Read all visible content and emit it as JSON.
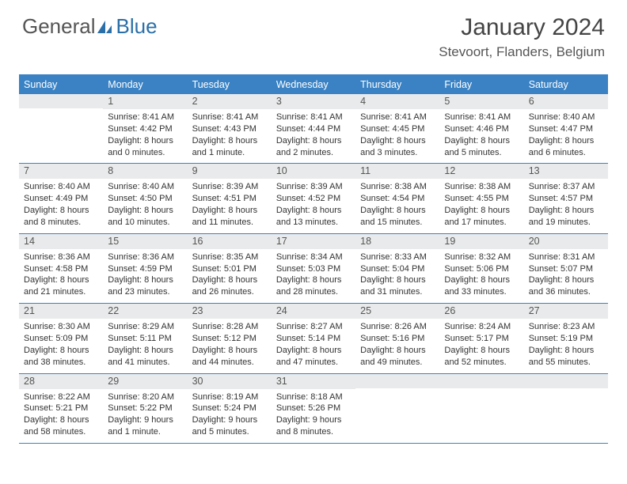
{
  "logo": {
    "part1": "General",
    "part2": "Blue"
  },
  "title": "January 2024",
  "location": "Stevoort, Flanders, Belgium",
  "header_bg": "#3a82c4",
  "daynum_bg": "#e9eaeb",
  "border_color": "#3a82c4",
  "text_color": "#333333",
  "weekdays": [
    "Sunday",
    "Monday",
    "Tuesday",
    "Wednesday",
    "Thursday",
    "Friday",
    "Saturday"
  ],
  "days": [
    {
      "n": 1,
      "sr": "8:41 AM",
      "ss": "4:42 PM",
      "dl": "8 hours and 0 minutes."
    },
    {
      "n": 2,
      "sr": "8:41 AM",
      "ss": "4:43 PM",
      "dl": "8 hours and 1 minute."
    },
    {
      "n": 3,
      "sr": "8:41 AM",
      "ss": "4:44 PM",
      "dl": "8 hours and 2 minutes."
    },
    {
      "n": 4,
      "sr": "8:41 AM",
      "ss": "4:45 PM",
      "dl": "8 hours and 3 minutes."
    },
    {
      "n": 5,
      "sr": "8:41 AM",
      "ss": "4:46 PM",
      "dl": "8 hours and 5 minutes."
    },
    {
      "n": 6,
      "sr": "8:40 AM",
      "ss": "4:47 PM",
      "dl": "8 hours and 6 minutes."
    },
    {
      "n": 7,
      "sr": "8:40 AM",
      "ss": "4:49 PM",
      "dl": "8 hours and 8 minutes."
    },
    {
      "n": 8,
      "sr": "8:40 AM",
      "ss": "4:50 PM",
      "dl": "8 hours and 10 minutes."
    },
    {
      "n": 9,
      "sr": "8:39 AM",
      "ss": "4:51 PM",
      "dl": "8 hours and 11 minutes."
    },
    {
      "n": 10,
      "sr": "8:39 AM",
      "ss": "4:52 PM",
      "dl": "8 hours and 13 minutes."
    },
    {
      "n": 11,
      "sr": "8:38 AM",
      "ss": "4:54 PM",
      "dl": "8 hours and 15 minutes."
    },
    {
      "n": 12,
      "sr": "8:38 AM",
      "ss": "4:55 PM",
      "dl": "8 hours and 17 minutes."
    },
    {
      "n": 13,
      "sr": "8:37 AM",
      "ss": "4:57 PM",
      "dl": "8 hours and 19 minutes."
    },
    {
      "n": 14,
      "sr": "8:36 AM",
      "ss": "4:58 PM",
      "dl": "8 hours and 21 minutes."
    },
    {
      "n": 15,
      "sr": "8:36 AM",
      "ss": "4:59 PM",
      "dl": "8 hours and 23 minutes."
    },
    {
      "n": 16,
      "sr": "8:35 AM",
      "ss": "5:01 PM",
      "dl": "8 hours and 26 minutes."
    },
    {
      "n": 17,
      "sr": "8:34 AM",
      "ss": "5:03 PM",
      "dl": "8 hours and 28 minutes."
    },
    {
      "n": 18,
      "sr": "8:33 AM",
      "ss": "5:04 PM",
      "dl": "8 hours and 31 minutes."
    },
    {
      "n": 19,
      "sr": "8:32 AM",
      "ss": "5:06 PM",
      "dl": "8 hours and 33 minutes."
    },
    {
      "n": 20,
      "sr": "8:31 AM",
      "ss": "5:07 PM",
      "dl": "8 hours and 36 minutes."
    },
    {
      "n": 21,
      "sr": "8:30 AM",
      "ss": "5:09 PM",
      "dl": "8 hours and 38 minutes."
    },
    {
      "n": 22,
      "sr": "8:29 AM",
      "ss": "5:11 PM",
      "dl": "8 hours and 41 minutes."
    },
    {
      "n": 23,
      "sr": "8:28 AM",
      "ss": "5:12 PM",
      "dl": "8 hours and 44 minutes."
    },
    {
      "n": 24,
      "sr": "8:27 AM",
      "ss": "5:14 PM",
      "dl": "8 hours and 47 minutes."
    },
    {
      "n": 25,
      "sr": "8:26 AM",
      "ss": "5:16 PM",
      "dl": "8 hours and 49 minutes."
    },
    {
      "n": 26,
      "sr": "8:24 AM",
      "ss": "5:17 PM",
      "dl": "8 hours and 52 minutes."
    },
    {
      "n": 27,
      "sr": "8:23 AM",
      "ss": "5:19 PM",
      "dl": "8 hours and 55 minutes."
    },
    {
      "n": 28,
      "sr": "8:22 AM",
      "ss": "5:21 PM",
      "dl": "8 hours and 58 minutes."
    },
    {
      "n": 29,
      "sr": "8:20 AM",
      "ss": "5:22 PM",
      "dl": "9 hours and 1 minute."
    },
    {
      "n": 30,
      "sr": "8:19 AM",
      "ss": "5:24 PM",
      "dl": "9 hours and 5 minutes."
    },
    {
      "n": 31,
      "sr": "8:18 AM",
      "ss": "5:26 PM",
      "dl": "9 hours and 8 minutes."
    }
  ],
  "first_weekday": 1,
  "labels": {
    "sunrise": "Sunrise:",
    "sunset": "Sunset:",
    "daylight": "Daylight:"
  }
}
